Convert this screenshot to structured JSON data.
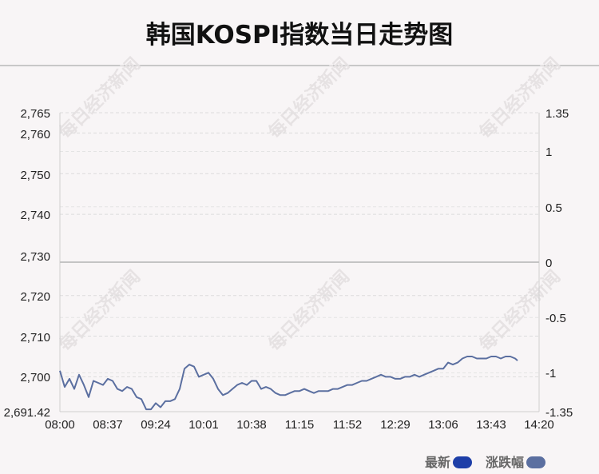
{
  "page": {
    "title": "韩国KOSPI指数当日走势图",
    "watermark": "每日经济新闻"
  },
  "chart_data": {
    "type": "line",
    "title": "韩国KOSPI指数当日走势图",
    "x_ticks": [
      "08:00",
      "08:37",
      "09:24",
      "10:01",
      "10:38",
      "11:15",
      "11:52",
      "12:29",
      "13:06",
      "13:43",
      "14:20"
    ],
    "y_left_ticks": [
      "2,765",
      "2,760",
      "2,750",
      "2,740",
      "2,730",
      "2,720",
      "2,710",
      "2,700",
      "2,691.42"
    ],
    "y_right_ticks": [
      "1.35",
      "1",
      "0.5",
      "0",
      "-0.5",
      "-1",
      "-1.35"
    ],
    "y_left_range": [
      2691.42,
      2765
    ],
    "y_right_range": [
      -1.35,
      1.35
    ],
    "baseline_value": 2728.3,
    "grid": "dashed horizontal",
    "legend_position": "bottom-right",
    "series": [
      {
        "name": "最新",
        "color": "#1e3fa8",
        "values": []
      },
      {
        "name": "涨跌幅",
        "color": "#5b6fa0",
        "values": [
          [
            0,
            2701.5
          ],
          [
            2,
            2697.5
          ],
          [
            4,
            2699.5
          ],
          [
            6,
            2697
          ],
          [
            8,
            2700.5
          ],
          [
            10,
            2698
          ],
          [
            12,
            2695
          ],
          [
            14,
            2699
          ],
          [
            16,
            2698.5
          ],
          [
            18,
            2698
          ],
          [
            20,
            2699.5
          ],
          [
            22,
            2699
          ],
          [
            24,
            2697
          ],
          [
            26,
            2696.5
          ],
          [
            28,
            2697.5
          ],
          [
            30,
            2697
          ],
          [
            32,
            2695
          ],
          [
            34,
            2694.5
          ],
          [
            36,
            2692
          ],
          [
            38,
            2692
          ],
          [
            40,
            2693.5
          ],
          [
            42,
            2692.5
          ],
          [
            44,
            2694
          ],
          [
            46,
            2694
          ],
          [
            48,
            2694.5
          ],
          [
            50,
            2697
          ],
          [
            52,
            2702
          ],
          [
            54,
            2703
          ],
          [
            56,
            2702.5
          ],
          [
            58,
            2700
          ],
          [
            60,
            2700.5
          ],
          [
            62,
            2701
          ],
          [
            64,
            2699.5
          ],
          [
            66,
            2697
          ],
          [
            68,
            2695.5
          ],
          [
            70,
            2696
          ],
          [
            72,
            2697
          ],
          [
            74,
            2698
          ],
          [
            76,
            2698.5
          ],
          [
            78,
            2698
          ],
          [
            80,
            2699
          ],
          [
            82,
            2699
          ],
          [
            84,
            2697
          ],
          [
            86,
            2697.5
          ],
          [
            88,
            2697
          ],
          [
            90,
            2696
          ],
          [
            92,
            2695.5
          ],
          [
            94,
            2695.5
          ],
          [
            96,
            2696
          ],
          [
            98,
            2696.5
          ],
          [
            100,
            2696.5
          ],
          [
            102,
            2697
          ],
          [
            104,
            2696.5
          ],
          [
            106,
            2696
          ],
          [
            108,
            2696.5
          ],
          [
            110,
            2696.5
          ],
          [
            112,
            2696.5
          ],
          [
            114,
            2697
          ],
          [
            116,
            2697
          ],
          [
            118,
            2697.5
          ],
          [
            120,
            2698
          ],
          [
            122,
            2698
          ],
          [
            124,
            2698.5
          ],
          [
            126,
            2699
          ],
          [
            128,
            2699
          ],
          [
            130,
            2699.5
          ],
          [
            132,
            2700
          ],
          [
            134,
            2700.5
          ],
          [
            136,
            2700
          ],
          [
            138,
            2700
          ],
          [
            140,
            2699.5
          ],
          [
            142,
            2699.5
          ],
          [
            144,
            2700
          ],
          [
            146,
            2700
          ],
          [
            148,
            2700.5
          ],
          [
            150,
            2700
          ],
          [
            152,
            2700.5
          ],
          [
            154,
            2701
          ],
          [
            156,
            2701.5
          ],
          [
            158,
            2702
          ],
          [
            160,
            2702
          ],
          [
            162,
            2703.5
          ],
          [
            164,
            2703
          ],
          [
            166,
            2703.5
          ],
          [
            168,
            2704.5
          ],
          [
            170,
            2705
          ],
          [
            172,
            2705
          ],
          [
            174,
            2704.5
          ],
          [
            176,
            2704.5
          ],
          [
            178,
            2704.5
          ],
          [
            180,
            2705
          ],
          [
            182,
            2705
          ],
          [
            184,
            2704.5
          ],
          [
            186,
            2705
          ],
          [
            188,
            2705
          ],
          [
            190,
            2704.5
          ],
          [
            191,
            2704
          ]
        ]
      }
    ]
  }
}
